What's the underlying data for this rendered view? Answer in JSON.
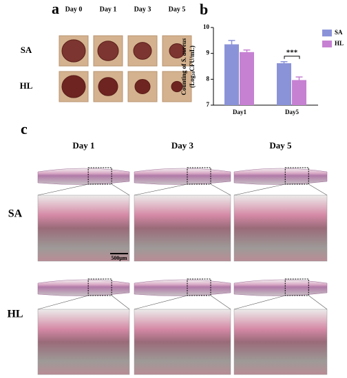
{
  "panel_labels": [
    "a",
    "b",
    "c"
  ],
  "panel_a": {
    "columns": [
      "Day 0",
      "Day 1",
      "Day 3",
      "Day 5"
    ],
    "rows": [
      "SA",
      "HL"
    ]
  },
  "chart_data": {
    "type": "bar",
    "ylabel": {
      "line1": [
        "Counting of ",
        "S. aureus"
      ],
      "line2": [
        "(Log",
        "10",
        "CFU/mL)"
      ]
    },
    "categories": [
      "Day1",
      "Day5"
    ],
    "series": [
      {
        "name": "SA",
        "color": "#8b93d8",
        "values": [
          9.35,
          8.62
        ],
        "errors": [
          0.15,
          0.06
        ]
      },
      {
        "name": "HL",
        "color": "#c681d2",
        "values": [
          9.05,
          7.97
        ],
        "errors": [
          0.08,
          0.12
        ]
      }
    ],
    "ylim": [
      7,
      10
    ],
    "yticks": [
      7,
      8,
      9,
      10
    ],
    "significance": {
      "category": 1,
      "label": "***"
    },
    "legend": "right"
  },
  "panel_c": {
    "columns": [
      "Day 1",
      "Day 3",
      "Day 5"
    ],
    "rows": [
      "SA",
      "HL"
    ],
    "scale_bar": "500μm"
  }
}
